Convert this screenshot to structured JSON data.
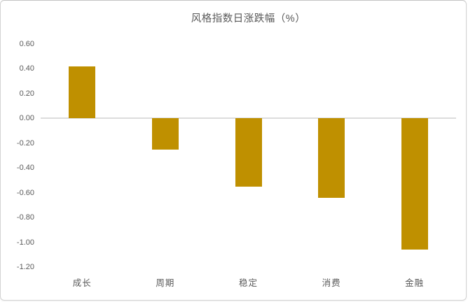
{
  "chart_data": {
    "type": "bar",
    "title": "风格指数日涨跌幅（%）",
    "categories": [
      "成长",
      "周期",
      "稳定",
      "消费",
      "金融"
    ],
    "values": [
      0.42,
      -0.25,
      -0.55,
      -0.64,
      -1.06
    ],
    "xlabel": "",
    "ylabel": "",
    "ylim": [
      -1.2,
      0.6
    ],
    "ytick_step": 0.2,
    "ytick_labels": [
      "0.60",
      "0.40",
      "0.20",
      "0.00",
      "-0.20",
      "-0.40",
      "-0.60",
      "-0.80",
      "-1.00",
      "-1.20"
    ],
    "grid": "zero-line-only",
    "legend": "none",
    "bar_color": "#BF9000",
    "zero_line_color": "#DCDCDC",
    "text_color": "#595959",
    "background_color": "#FFFFFF"
  }
}
